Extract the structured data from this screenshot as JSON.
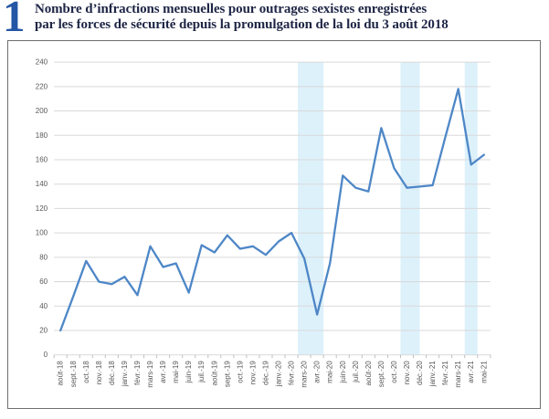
{
  "header": {
    "figure_number": "1",
    "title_line1": "Nombre d’infractions mensuelles pour outrages sexistes enregistrées",
    "title_line2": "par les forces de sécurité depuis la promulgation de la loi du 3 août 2018"
  },
  "colors": {
    "figure_number_blue": "#2456a5",
    "title_navy": "#1e2545",
    "line_blue": "#4e87c7",
    "band_light_blue": "#ddf1fb",
    "gridline_gray": "#d9d9d9",
    "axis_label_gray": "#595959",
    "tick_gray": "#bfbfbf",
    "panel_border_gray": "#6f6f6f"
  },
  "chart_data": {
    "type": "line",
    "title": "Nombre d’infractions mensuelles pour outrages sexistes enregistrées par les forces de sécurité depuis la promulgation de la loi du 3 août 2018",
    "xlabel": "",
    "ylabel": "",
    "ylim": [
      0,
      240
    ],
    "ytick_step": 20,
    "grid": true,
    "legend": "none",
    "categories": [
      "août-18",
      "sept.-18",
      "oct.-18",
      "nov.-18",
      "déc.-18",
      "janv.-19",
      "févr.-19",
      "mars-19",
      "avr.-19",
      "mai-19",
      "juin-19",
      "juil.-19",
      "août-19",
      "sept.-19",
      "oct.-19",
      "nov.-19",
      "déc.-19",
      "janv.-20",
      "févr.-20",
      "mars-20",
      "avr.-20",
      "mai-20",
      "juin-20",
      "juil.-20",
      "août-20",
      "sept.-20",
      "oct.-20",
      "nov.-20",
      "déc.-20",
      "janv.-21",
      "févr.-21",
      "mars-21",
      "avr.-21",
      "mai-21"
    ],
    "values": [
      20,
      48,
      77,
      60,
      58,
      64,
      49,
      89,
      72,
      75,
      51,
      90,
      84,
      98,
      87,
      89,
      82,
      93,
      100,
      79,
      33,
      75,
      147,
      137,
      134,
      186,
      153,
      137,
      138,
      139,
      179,
      218,
      156,
      164
    ],
    "highlight_bands": [
      {
        "from_index": 19,
        "to_index": 21
      },
      {
        "from_index": 27,
        "to_index": 28.5
      },
      {
        "from_index": 32,
        "to_index": 33
      }
    ]
  }
}
